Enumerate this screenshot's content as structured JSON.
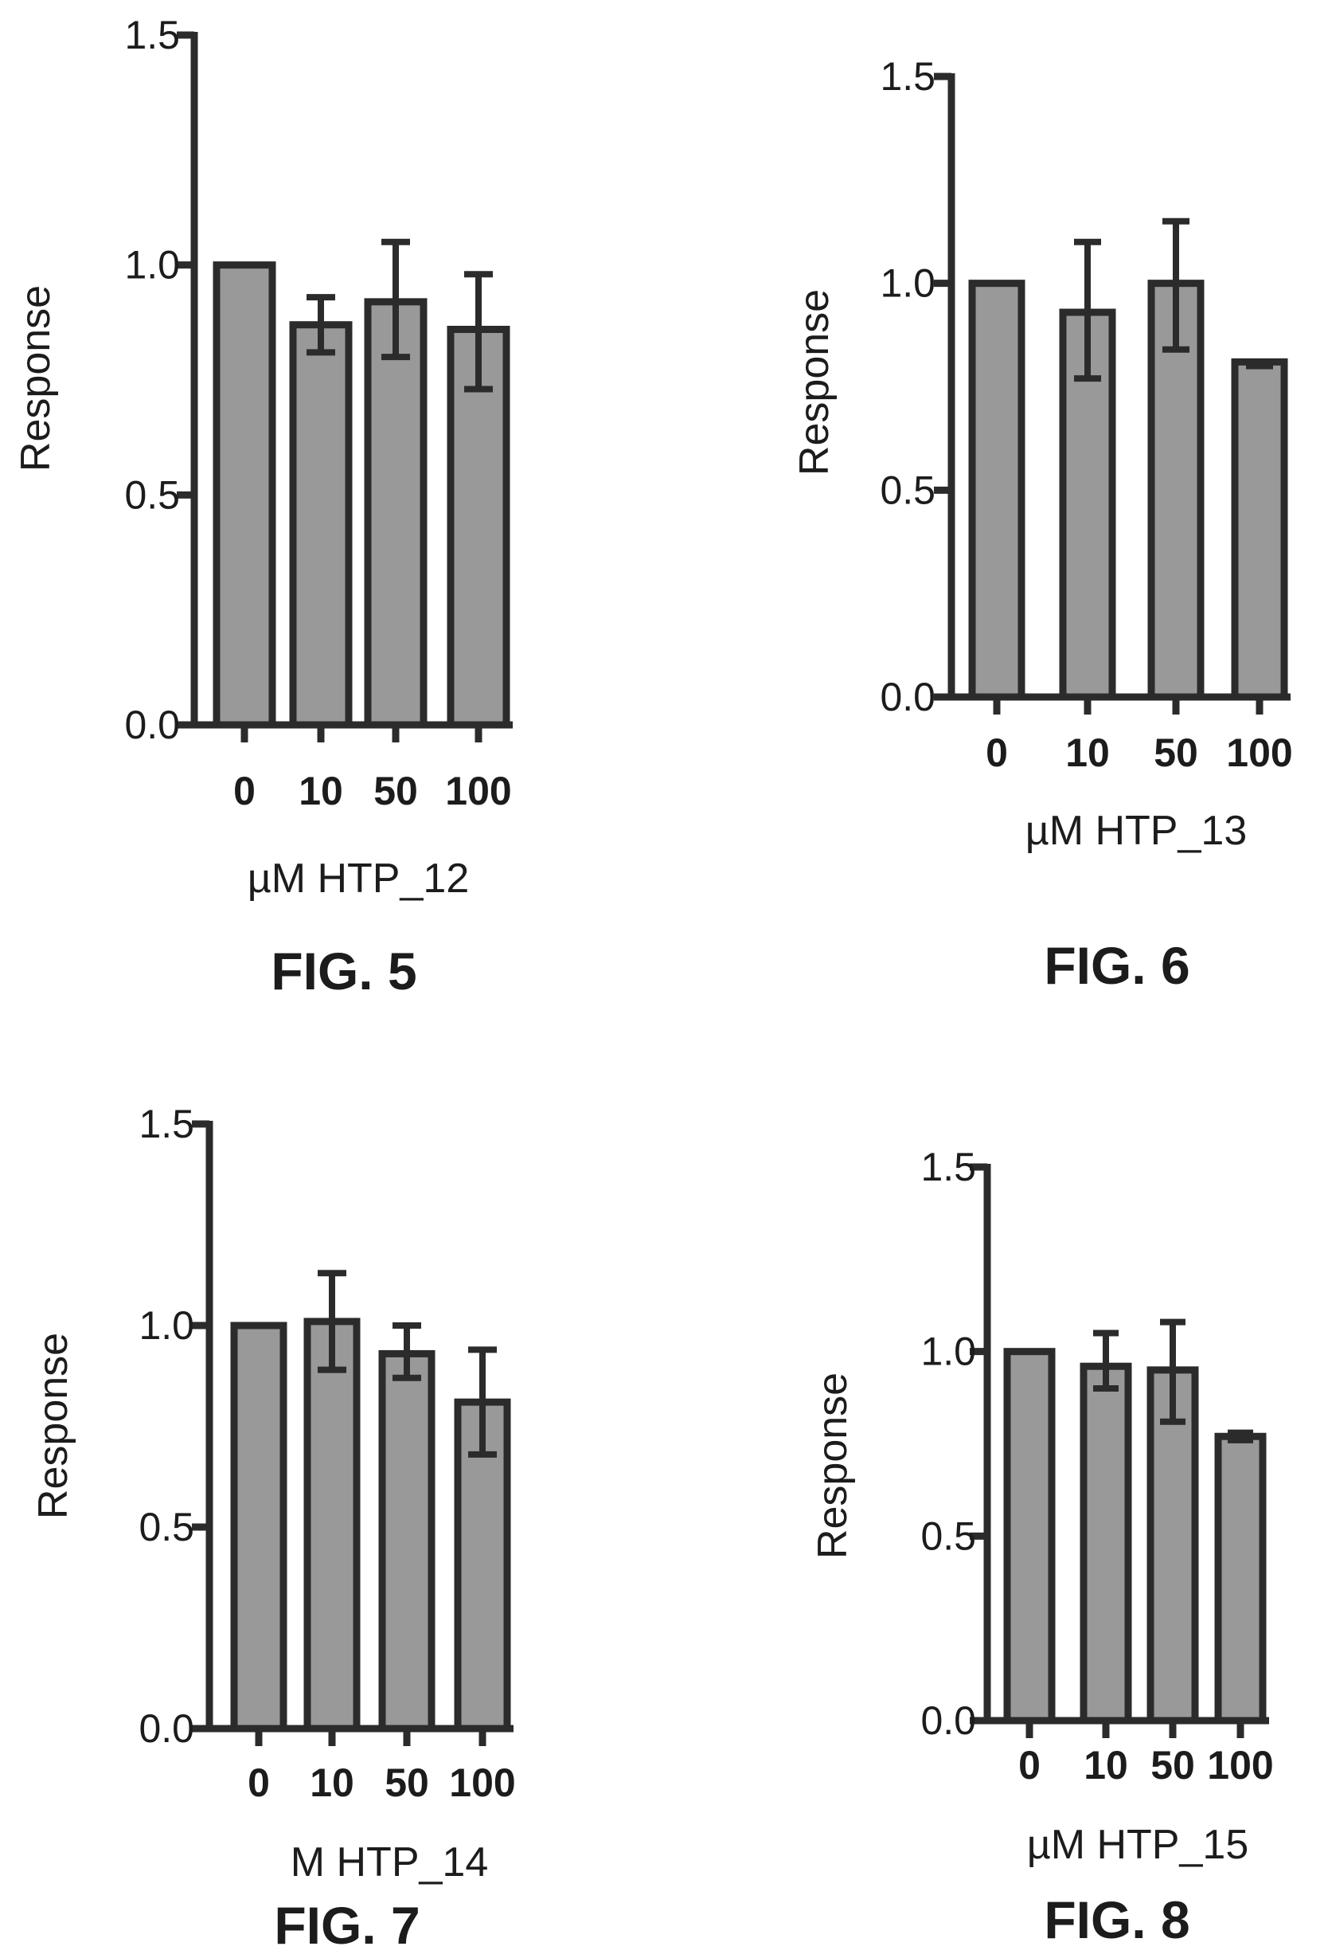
{
  "colors": {
    "bar_fill": "#999999",
    "stroke": "#2b2b2b",
    "background": "#ffffff"
  },
  "chart_data": [
    {
      "type": "bar",
      "figure_label": "FIG. 5",
      "ylabel": "Response",
      "xlabel": "µM HTP_12",
      "categories": [
        "0",
        "10",
        "50",
        "100"
      ],
      "values": [
        1.0,
        0.87,
        0.92,
        0.86
      ],
      "error_low": [
        1.0,
        0.81,
        0.8,
        0.73
      ],
      "error_high": [
        1.0,
        0.93,
        1.05,
        0.98
      ],
      "ylim": [
        0,
        1.5
      ],
      "yticks": [
        "0.0",
        "0.5",
        "1.0",
        "1.5"
      ],
      "grid": false
    },
    {
      "type": "bar",
      "figure_label": "FIG. 6",
      "ylabel": "Response",
      "xlabel": "µM HTP_13",
      "categories": [
        "0",
        "10",
        "50",
        "100"
      ],
      "values": [
        1.0,
        0.93,
        1.0,
        0.81
      ],
      "error_low": [
        1.0,
        0.77,
        0.84,
        0.8
      ],
      "error_high": [
        1.0,
        1.1,
        1.15,
        0.81
      ],
      "ylim": [
        0,
        1.5
      ],
      "yticks": [
        "0.0",
        "0.5",
        "1.0",
        "1.5"
      ],
      "grid": false
    },
    {
      "type": "bar",
      "figure_label": "FIG. 7",
      "ylabel": "Response",
      "xlabel": "M HTP_14",
      "categories": [
        "0",
        "10",
        "50",
        "100"
      ],
      "values": [
        1.0,
        1.01,
        0.93,
        0.81
      ],
      "error_low": [
        1.0,
        0.89,
        0.87,
        0.68
      ],
      "error_high": [
        1.0,
        1.13,
        1.0,
        0.94
      ],
      "ylim": [
        0,
        1.5
      ],
      "yticks": [
        "0.0",
        "0.5",
        "1.0",
        "1.5"
      ],
      "grid": false
    },
    {
      "type": "bar",
      "figure_label": "FIG. 8",
      "ylabel": "Response",
      "xlabel": "µM HTP_15",
      "categories": [
        "0",
        "10",
        "50",
        "100"
      ],
      "values": [
        1.0,
        0.96,
        0.95,
        0.77
      ],
      "error_low": [
        1.0,
        0.9,
        0.81,
        0.76
      ],
      "error_high": [
        1.0,
        1.05,
        1.08,
        0.78
      ],
      "ylim": [
        0,
        1.5
      ],
      "yticks": [
        "0.0",
        "0.5",
        "1.0",
        "1.5"
      ],
      "grid": false
    }
  ]
}
